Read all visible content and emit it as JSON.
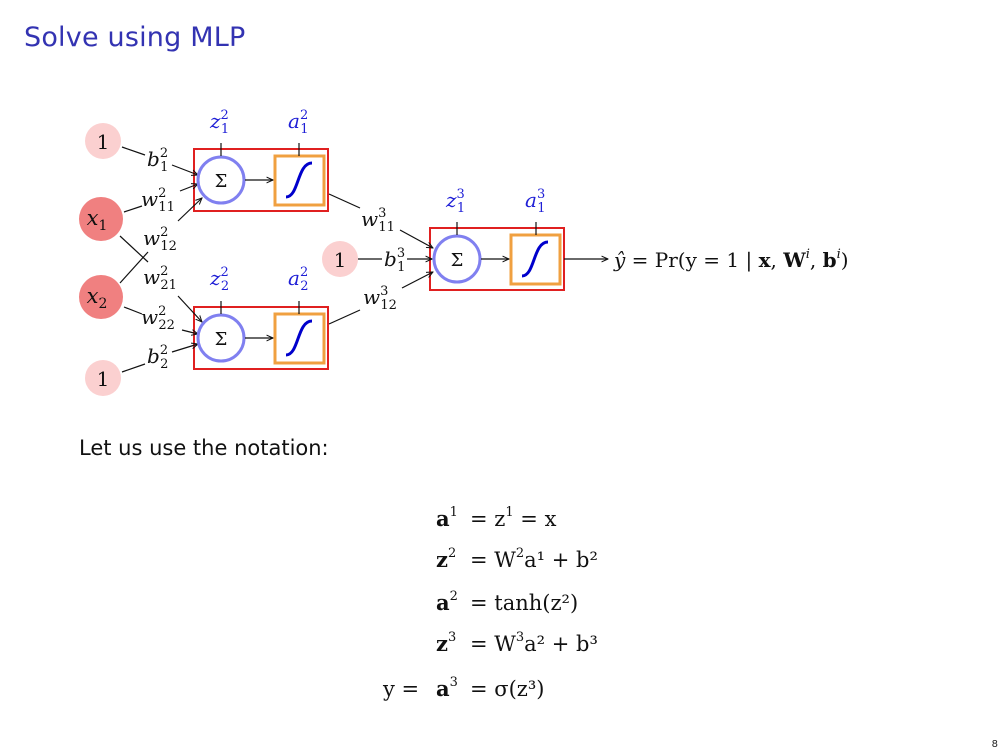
{
  "slide": {
    "title": "Solve using MLP",
    "notation_label": "Let us use the notation:",
    "page_number": "8"
  },
  "diagram": {
    "inputs": {
      "bias_top": "1",
      "x1": {
        "base": "x",
        "sub": "1"
      },
      "x2": {
        "base": "x",
        "sub": "2"
      },
      "bias_bottom": "1",
      "bias_output": "1"
    },
    "weights": {
      "b1_2": {
        "base": "b",
        "sub": "1",
        "sup": "2"
      },
      "w11_2": {
        "base": "w",
        "sub": "11",
        "sup": "2"
      },
      "w12_2": {
        "base": "w",
        "sub": "12",
        "sup": "2"
      },
      "w21_2": {
        "base": "w",
        "sub": "21",
        "sup": "2"
      },
      "w22_2": {
        "base": "w",
        "sub": "22",
        "sup": "2"
      },
      "b2_2": {
        "base": "b",
        "sub": "2",
        "sup": "2"
      },
      "w11_3": {
        "base": "w",
        "sub": "11",
        "sup": "3"
      },
      "w12_3": {
        "base": "w",
        "sub": "12",
        "sup": "3"
      },
      "b1_3": {
        "base": "b",
        "sub": "1",
        "sup": "3"
      }
    },
    "neuron_labels": {
      "z1_2": {
        "base": "z",
        "sub": "1",
        "sup": "2"
      },
      "a1_2": {
        "base": "a",
        "sub": "1",
        "sup": "2"
      },
      "z2_2": {
        "base": "z",
        "sub": "2",
        "sup": "2"
      },
      "a2_2": {
        "base": "a",
        "sub": "2",
        "sup": "2"
      },
      "z1_3": {
        "base": "z",
        "sub": "1",
        "sup": "3"
      },
      "a1_3": {
        "base": "a",
        "sub": "1",
        "sup": "3"
      }
    },
    "sum_symbol": "Σ",
    "output": {
      "yhat": "ŷ",
      "rest": " = Pr(y = 1 | ",
      "x": "x",
      "comma1": ", ",
      "W": "W",
      "W_sup": "i",
      "comma2": ", ",
      "b": "b",
      "b_sup": "i",
      "close": ")"
    },
    "colors": {
      "input_node": "#f08080",
      "bias_node": "#fbd0d0",
      "sum_circle": "#8080f0",
      "activation_box": "#f0a040",
      "sigmoid_curve": "#0000cc",
      "neuron_box": "#e02020",
      "label_blue": "#1f1fd6"
    }
  },
  "equations": [
    {
      "lhs_pre": "",
      "lhs": "a",
      "lhs_sup": "1",
      "rhs": "= z",
      "rhs_sup": "1",
      "rhs_tail": " = x"
    },
    {
      "lhs_pre": "",
      "lhs": "z",
      "lhs_sup": "2",
      "rhs": "= W",
      "rhs_sup": "2",
      "rhs_tail": "a¹ + b²"
    },
    {
      "lhs_pre": "",
      "lhs": "a",
      "lhs_sup": "2",
      "rhs": "= tanh(z²)",
      "rhs_sup": "",
      "rhs_tail": ""
    },
    {
      "lhs_pre": "",
      "lhs": "z",
      "lhs_sup": "3",
      "rhs": "= W",
      "rhs_sup": "3",
      "rhs_tail": "a² + b³"
    },
    {
      "lhs_pre": "y = ",
      "lhs": "a",
      "lhs_sup": "3",
      "rhs": "= σ(z³)",
      "rhs_sup": "",
      "rhs_tail": ""
    }
  ]
}
